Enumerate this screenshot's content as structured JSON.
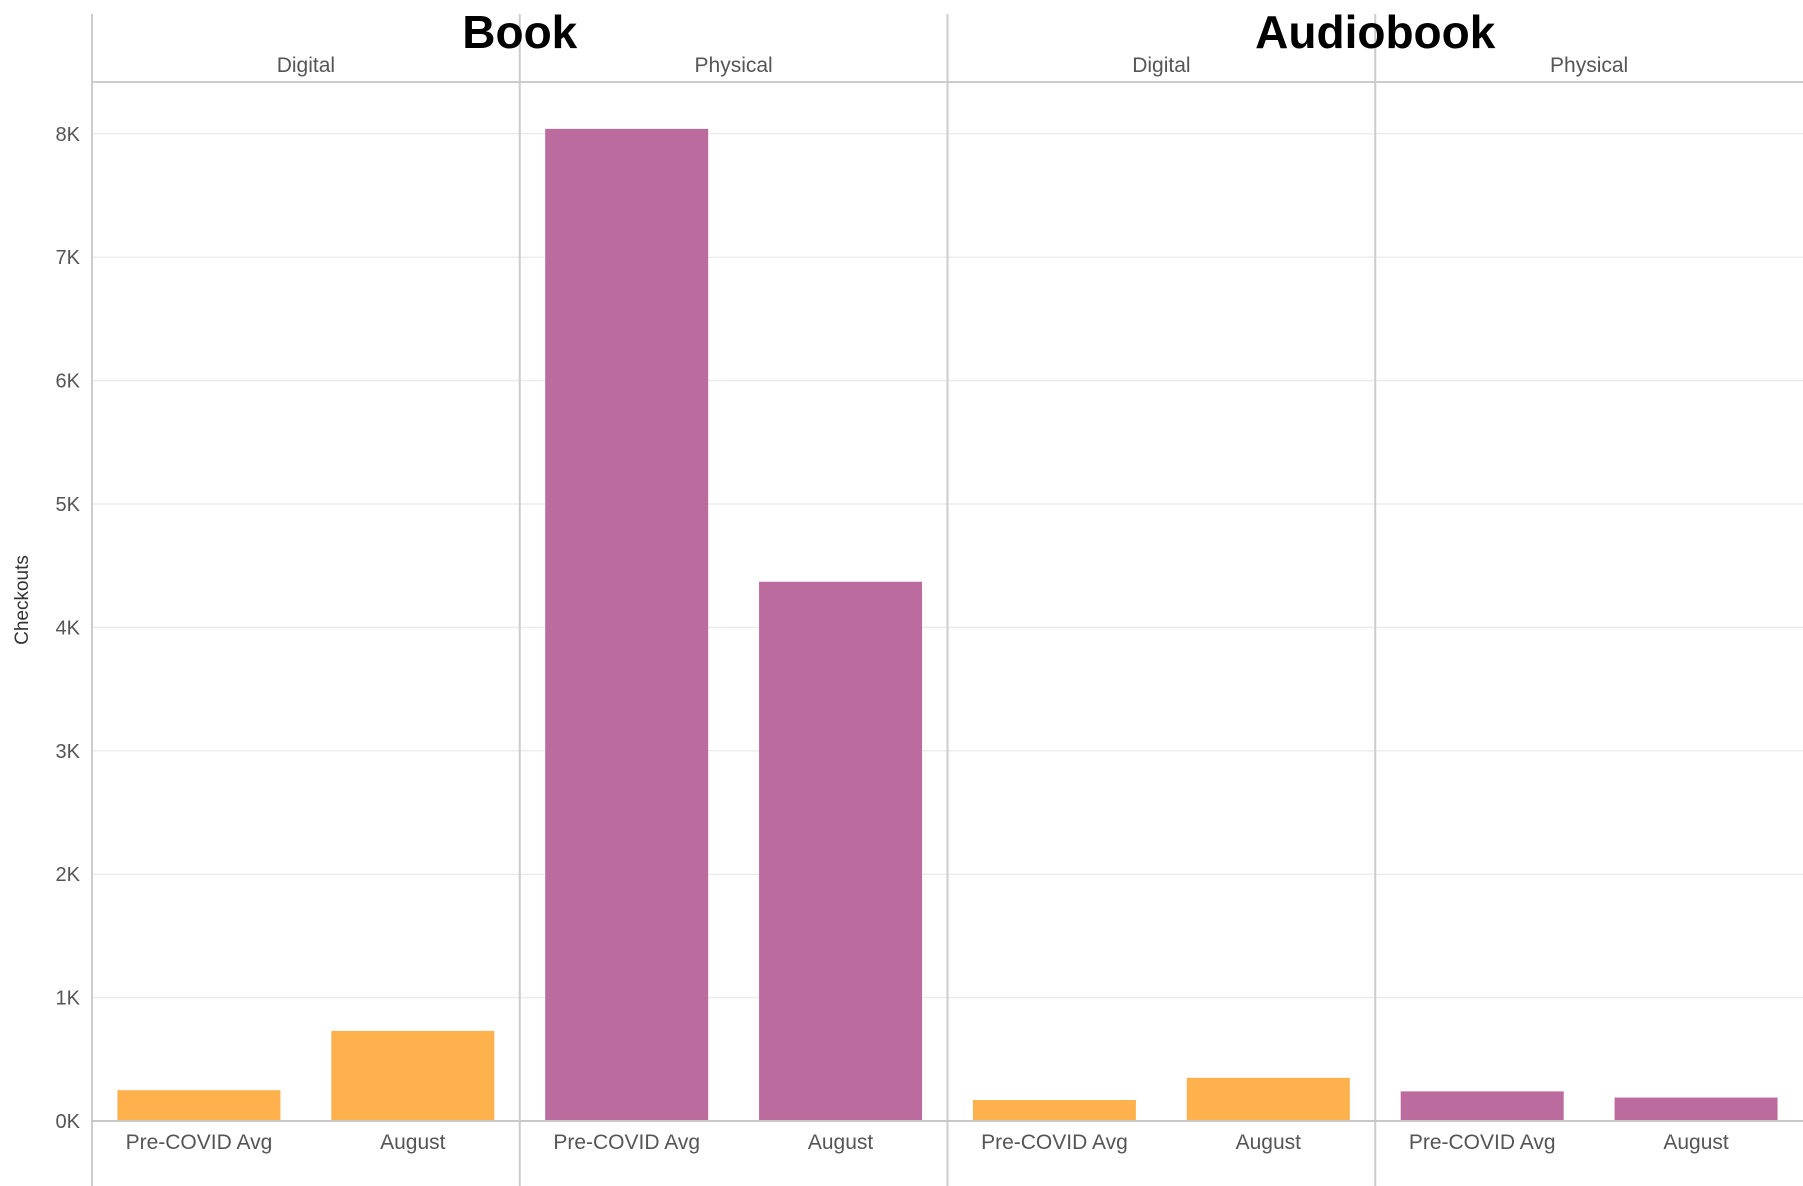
{
  "chart_data": {
    "type": "bar",
    "ylabel": "Checkouts",
    "ylim": [
      0,
      8500
    ],
    "y_ticks": [
      "0K",
      "1K",
      "2K",
      "3K",
      "4K",
      "5K",
      "6K",
      "7K",
      "8K"
    ],
    "y_tick_values": [
      0,
      1000,
      2000,
      3000,
      4000,
      5000,
      6000,
      7000,
      8000
    ],
    "grid": true,
    "colors": {
      "Digital": "#ffb14e",
      "Physical": "#bc6b9e"
    },
    "groups": [
      {
        "title": "Book",
        "panels": [
          {
            "name": "Digital",
            "categories": [
              "Pre-COVID Avg",
              "August"
            ],
            "values": [
              250,
              730
            ]
          },
          {
            "name": "Physical",
            "categories": [
              "Pre-COVID Avg",
              "August"
            ],
            "values": [
              8040,
              4370
            ]
          }
        ]
      },
      {
        "title": "Audiobook",
        "panels": [
          {
            "name": "Digital",
            "categories": [
              "Pre-COVID Avg",
              "August"
            ],
            "values": [
              170,
              350
            ]
          },
          {
            "name": "Physical",
            "categories": [
              "Pre-COVID Avg",
              "August"
            ],
            "values": [
              240,
              190
            ]
          }
        ]
      }
    ]
  }
}
